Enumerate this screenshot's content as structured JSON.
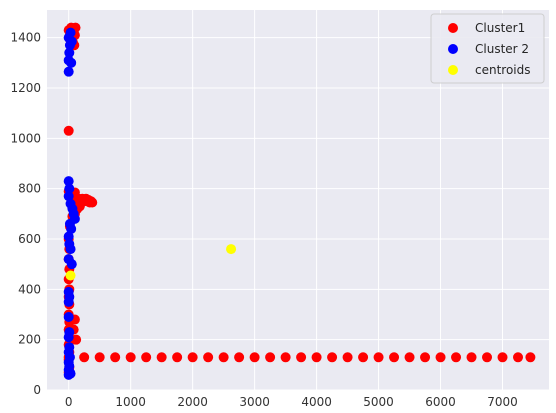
{
  "colors": {
    "plot_background": "#eaeaf2",
    "grid": "#ffffff",
    "cluster1": "#ff0000",
    "cluster2": "#0000ff",
    "centroids": "#ffff00"
  },
  "chart_data": {
    "type": "scatter",
    "title": "",
    "xlabel": "",
    "ylabel": "",
    "xlim": [
      -350,
      7750
    ],
    "ylim": [
      0,
      1510
    ],
    "xticks": [
      0,
      1000,
      2000,
      3000,
      4000,
      5000,
      6000,
      7000
    ],
    "yticks": [
      0,
      200,
      400,
      600,
      800,
      1000,
      1200,
      1400
    ],
    "grid": true,
    "legend_position": "top-right",
    "series": [
      {
        "name": "Cluster1",
        "color": "#ff0000",
        "points": [
          [
            0,
            1430
          ],
          [
            20,
            1420
          ],
          [
            40,
            1440
          ],
          [
            60,
            1415
          ],
          [
            80,
            1435
          ],
          [
            100,
            1410
          ],
          [
            110,
            1440
          ],
          [
            30,
            1390
          ],
          [
            70,
            1380
          ],
          [
            90,
            1370
          ],
          [
            0,
            1030
          ],
          [
            0,
            790
          ],
          [
            40,
            760
          ],
          [
            60,
            780
          ],
          [
            80,
            770
          ],
          [
            100,
            785
          ],
          [
            120,
            760
          ],
          [
            140,
            755
          ],
          [
            160,
            760
          ],
          [
            180,
            750
          ],
          [
            200,
            755
          ],
          [
            220,
            760
          ],
          [
            240,
            750
          ],
          [
            260,
            755
          ],
          [
            280,
            760
          ],
          [
            300,
            750
          ],
          [
            320,
            755
          ],
          [
            340,
            745
          ],
          [
            360,
            750
          ],
          [
            380,
            745
          ],
          [
            100,
            700
          ],
          [
            140,
            720
          ],
          [
            180,
            730
          ],
          [
            60,
            690
          ],
          [
            20,
            650
          ],
          [
            0,
            600
          ],
          [
            10,
            560
          ],
          [
            0,
            520
          ],
          [
            10,
            480
          ],
          [
            0,
            440
          ],
          [
            10,
            400
          ],
          [
            0,
            370
          ],
          [
            10,
            340
          ],
          [
            0,
            300
          ],
          [
            10,
            270
          ],
          [
            0,
            240
          ],
          [
            10,
            210
          ],
          [
            0,
            180
          ],
          [
            10,
            150
          ],
          [
            0,
            120
          ],
          [
            10,
            90
          ],
          [
            0,
            70
          ],
          [
            100,
            280
          ],
          [
            80,
            240
          ],
          [
            120,
            200
          ],
          [
            0,
            130
          ],
          [
            250,
            130
          ],
          [
            500,
            130
          ],
          [
            750,
            130
          ],
          [
            1000,
            130
          ],
          [
            1250,
            130
          ],
          [
            1500,
            130
          ],
          [
            1750,
            130
          ],
          [
            2000,
            130
          ],
          [
            2250,
            130
          ],
          [
            2500,
            130
          ],
          [
            2750,
            130
          ],
          [
            3000,
            130
          ],
          [
            3250,
            130
          ],
          [
            3500,
            130
          ],
          [
            3750,
            130
          ],
          [
            4000,
            130
          ],
          [
            4250,
            130
          ],
          [
            4500,
            130
          ],
          [
            4750,
            130
          ],
          [
            5000,
            130
          ],
          [
            5250,
            130
          ],
          [
            5500,
            130
          ],
          [
            5750,
            130
          ],
          [
            6000,
            130
          ],
          [
            6250,
            130
          ],
          [
            6500,
            130
          ],
          [
            6750,
            130
          ],
          [
            7000,
            130
          ],
          [
            7250,
            130
          ],
          [
            7450,
            130
          ]
        ]
      },
      {
        "name": "Cluster 2",
        "color": "#0000ff",
        "points": [
          [
            0,
            1400
          ],
          [
            20,
            1370
          ],
          [
            10,
            1340
          ],
          [
            0,
            1310
          ],
          [
            0,
            1265
          ],
          [
            30,
            1420
          ],
          [
            50,
            1385
          ],
          [
            40,
            1300
          ],
          [
            0,
            830
          ],
          [
            10,
            800
          ],
          [
            0,
            770
          ],
          [
            30,
            740
          ],
          [
            60,
            720
          ],
          [
            80,
            700
          ],
          [
            100,
            680
          ],
          [
            20,
            660
          ],
          [
            40,
            640
          ],
          [
            0,
            610
          ],
          [
            10,
            580
          ],
          [
            30,
            560
          ],
          [
            0,
            520
          ],
          [
            50,
            500
          ],
          [
            0,
            390
          ],
          [
            10,
            370
          ],
          [
            0,
            350
          ],
          [
            0,
            290
          ],
          [
            10,
            230
          ],
          [
            0,
            210
          ],
          [
            10,
            170
          ],
          [
            0,
            150
          ],
          [
            20,
            130
          ],
          [
            0,
            110
          ],
          [
            10,
            95
          ],
          [
            0,
            80
          ],
          [
            20,
            70
          ],
          [
            0,
            60
          ],
          [
            30,
            65
          ]
        ]
      },
      {
        "name": "centroids",
        "color": "#ffff00",
        "points": [
          [
            30,
            455
          ],
          [
            2620,
            560
          ]
        ]
      }
    ]
  }
}
